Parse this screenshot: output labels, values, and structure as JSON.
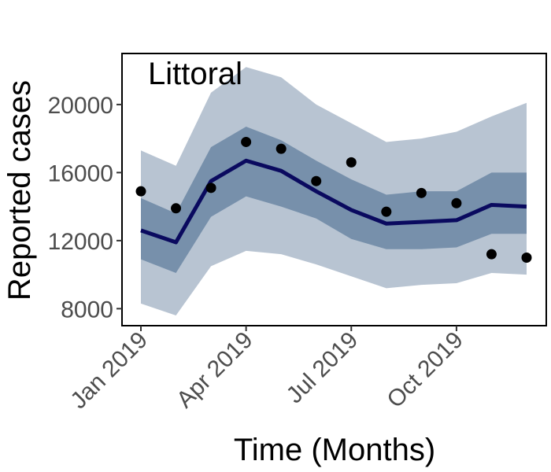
{
  "chart_data": {
    "type": "line",
    "panel_label": "Littoral",
    "xlabel": "Time (Months)",
    "ylabel": "Reported cases",
    "x": [
      "2019-01",
      "2019-02",
      "2019-03",
      "2019-04",
      "2019-05",
      "2019-06",
      "2019-07",
      "2019-08",
      "2019-09",
      "2019-10",
      "2019-11",
      "2019-12"
    ],
    "x_ticks": [
      {
        "x": "2019-01",
        "label": "Jan 2019"
      },
      {
        "x": "2019-04",
        "label": "Apr 2019"
      },
      {
        "x": "2019-07",
        "label": "Jul 2019"
      },
      {
        "x": "2019-10",
        "label": "Oct 2019"
      }
    ],
    "y_ticks": [
      8000,
      12000,
      16000,
      20000
    ],
    "ylim": [
      7000,
      23000
    ],
    "grid": false,
    "series": [
      {
        "kind": "band_outer",
        "lower": [
          8300,
          7600,
          10500,
          11400,
          11200,
          10600,
          9900,
          9200,
          9400,
          9500,
          10100,
          10000
        ],
        "upper": [
          17300,
          16400,
          20700,
          22200,
          21600,
          20000,
          18900,
          17800,
          18000,
          18400,
          19300,
          20100
        ]
      },
      {
        "kind": "band_inner",
        "lower": [
          10900,
          10100,
          13400,
          14600,
          14000,
          13300,
          12100,
          11500,
          11500,
          11600,
          12400,
          12400
        ],
        "upper": [
          14500,
          13600,
          17500,
          18700,
          17900,
          16700,
          15600,
          14700,
          14900,
          14900,
          16000,
          16000
        ]
      },
      {
        "kind": "median_line",
        "values": [
          12600,
          11900,
          15500,
          16700,
          16100,
          14900,
          13800,
          13000,
          13100,
          13200,
          14100,
          14000
        ]
      },
      {
        "kind": "observed",
        "values": [
          14900,
          13900,
          15100,
          17800,
          17400,
          15500,
          16600,
          13700,
          14800,
          14200,
          11200,
          11000
        ]
      }
    ],
    "colors": {
      "band_outer": "#b8c4d2",
      "band_inner": "#7790ab",
      "median_line": "#0a0a5f",
      "observed": "#000000",
      "frame": "#000000"
    }
  }
}
